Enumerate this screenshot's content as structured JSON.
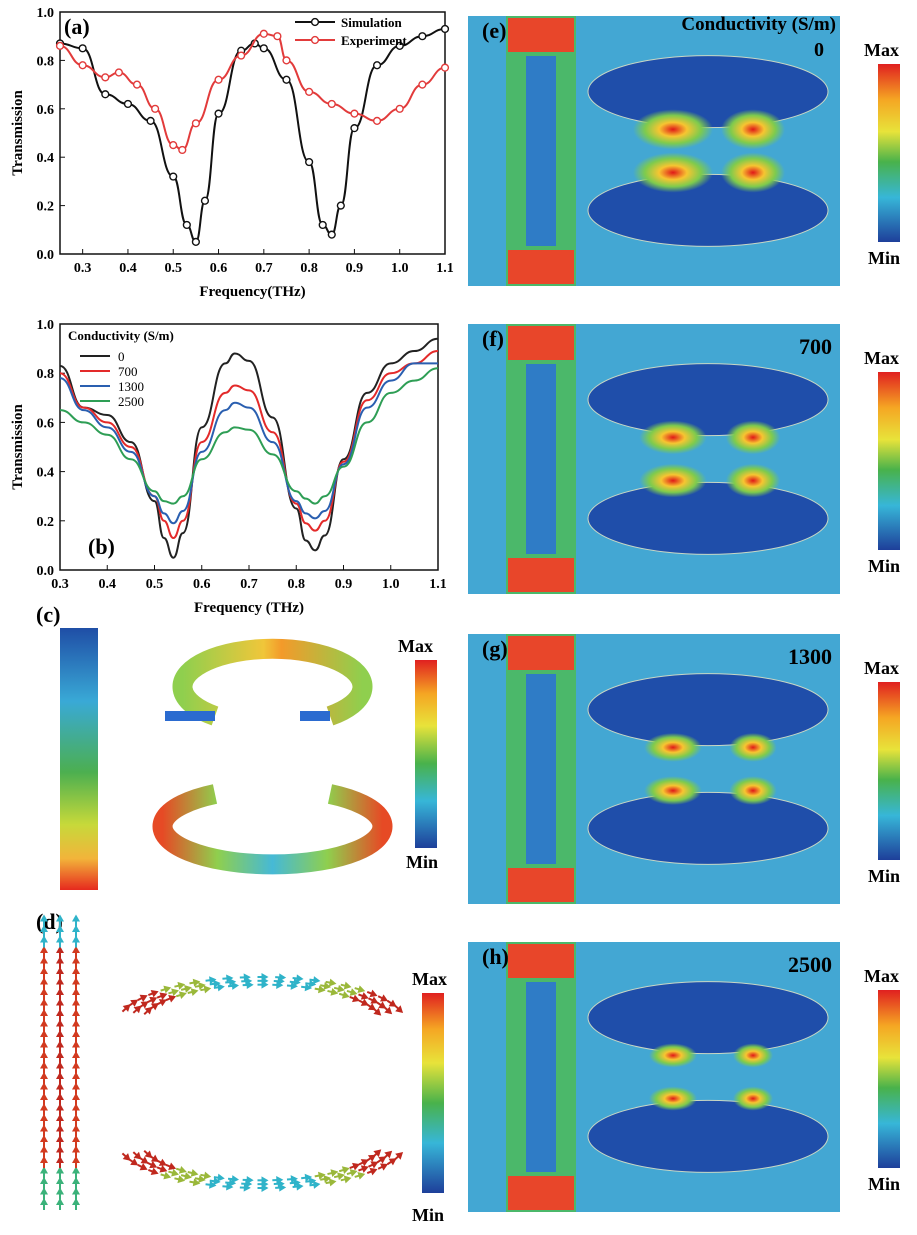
{
  "figure": {
    "panel_labels": {
      "a": "(a)",
      "b": "(b)",
      "c": "(c)",
      "d": "(d)",
      "e": "(e)",
      "f": "(f)",
      "g": "(g)",
      "h": "(h)"
    },
    "max_label": "Max",
    "min_label": "Min",
    "field_panels": [
      {
        "label": "(e)",
        "header": "Conductivity (S/m)",
        "value": "0"
      },
      {
        "label": "(f)",
        "value": "700"
      },
      {
        "label": "(g)",
        "value": "1300"
      },
      {
        "label": "(h)",
        "value": "2500"
      }
    ]
  },
  "chart_data": [
    {
      "type": "line",
      "panel": "(a)",
      "xlabel": "Frequency(THz)",
      "ylabel": "Transmission",
      "xlim": [
        0.25,
        1.1
      ],
      "ylim": [
        0,
        1.0
      ],
      "xticks": [
        0.3,
        0.4,
        0.5,
        0.6,
        0.7,
        0.8,
        0.9,
        1.0,
        1.1
      ],
      "yticks": [
        0.0,
        0.2,
        0.4,
        0.6,
        0.8,
        1.0
      ],
      "legend": "top-right",
      "series": [
        {
          "name": "Simulation",
          "color": "#111111",
          "marker": "circle",
          "x": [
            0.25,
            0.3,
            0.35,
            0.4,
            0.45,
            0.5,
            0.53,
            0.55,
            0.57,
            0.6,
            0.65,
            0.68,
            0.7,
            0.75,
            0.8,
            0.83,
            0.85,
            0.87,
            0.9,
            0.95,
            1.0,
            1.05,
            1.1
          ],
          "y": [
            0.87,
            0.85,
            0.66,
            0.62,
            0.55,
            0.32,
            0.12,
            0.05,
            0.22,
            0.58,
            0.84,
            0.87,
            0.85,
            0.72,
            0.38,
            0.12,
            0.08,
            0.2,
            0.52,
            0.78,
            0.86,
            0.9,
            0.93
          ]
        },
        {
          "name": "Experiment",
          "color": "#e23b3b",
          "marker": "circle",
          "x": [
            0.25,
            0.3,
            0.35,
            0.38,
            0.42,
            0.46,
            0.5,
            0.52,
            0.55,
            0.6,
            0.65,
            0.7,
            0.73,
            0.75,
            0.8,
            0.85,
            0.9,
            0.95,
            1.0,
            1.05,
            1.1
          ],
          "y": [
            0.86,
            0.78,
            0.73,
            0.75,
            0.7,
            0.6,
            0.45,
            0.43,
            0.54,
            0.72,
            0.82,
            0.91,
            0.9,
            0.8,
            0.67,
            0.62,
            0.58,
            0.55,
            0.6,
            0.7,
            0.77
          ]
        }
      ]
    },
    {
      "type": "line",
      "panel": "(b)",
      "xlabel": "Frequency (THz)",
      "ylabel": "Transmission",
      "xlim": [
        0.3,
        1.1
      ],
      "ylim": [
        0,
        1.0
      ],
      "xticks": [
        0.3,
        0.4,
        0.5,
        0.6,
        0.7,
        0.8,
        0.9,
        1.0,
        1.1
      ],
      "yticks": [
        0.0,
        0.2,
        0.4,
        0.6,
        0.8,
        1.0
      ],
      "legend_title": "Conductivity (S/m)",
      "legend": "top-left",
      "series": [
        {
          "name": "0",
          "color": "#222222",
          "x": [
            0.3,
            0.35,
            0.4,
            0.45,
            0.5,
            0.52,
            0.54,
            0.56,
            0.6,
            0.65,
            0.67,
            0.7,
            0.75,
            0.8,
            0.82,
            0.84,
            0.86,
            0.9,
            0.95,
            1.0,
            1.05,
            1.1
          ],
          "y": [
            0.83,
            0.66,
            0.63,
            0.52,
            0.28,
            0.13,
            0.05,
            0.15,
            0.58,
            0.84,
            0.88,
            0.85,
            0.62,
            0.25,
            0.12,
            0.08,
            0.14,
            0.45,
            0.72,
            0.84,
            0.89,
            0.94
          ]
        },
        {
          "name": "700",
          "color": "#e32a2a",
          "x": [
            0.3,
            0.35,
            0.4,
            0.45,
            0.5,
            0.52,
            0.54,
            0.56,
            0.6,
            0.65,
            0.67,
            0.7,
            0.75,
            0.8,
            0.82,
            0.84,
            0.86,
            0.9,
            0.95,
            1.0,
            1.05,
            1.1
          ],
          "y": [
            0.8,
            0.66,
            0.6,
            0.5,
            0.3,
            0.2,
            0.13,
            0.2,
            0.52,
            0.72,
            0.75,
            0.73,
            0.56,
            0.27,
            0.19,
            0.16,
            0.2,
            0.44,
            0.69,
            0.8,
            0.84,
            0.89
          ]
        },
        {
          "name": "1300",
          "color": "#2a5fb0",
          "x": [
            0.3,
            0.35,
            0.4,
            0.45,
            0.5,
            0.52,
            0.54,
            0.56,
            0.6,
            0.65,
            0.67,
            0.7,
            0.75,
            0.8,
            0.82,
            0.84,
            0.86,
            0.9,
            0.95,
            1.0,
            1.05,
            1.1
          ],
          "y": [
            0.78,
            0.65,
            0.58,
            0.48,
            0.3,
            0.23,
            0.19,
            0.24,
            0.48,
            0.65,
            0.68,
            0.66,
            0.52,
            0.28,
            0.23,
            0.21,
            0.24,
            0.43,
            0.66,
            0.77,
            0.84,
            0.84
          ]
        },
        {
          "name": "2500",
          "color": "#2e9e55",
          "x": [
            0.3,
            0.35,
            0.4,
            0.45,
            0.5,
            0.52,
            0.54,
            0.56,
            0.6,
            0.65,
            0.67,
            0.7,
            0.75,
            0.8,
            0.82,
            0.84,
            0.86,
            0.9,
            0.95,
            1.0,
            1.05,
            1.1
          ],
          "y": [
            0.65,
            0.6,
            0.55,
            0.45,
            0.32,
            0.28,
            0.27,
            0.3,
            0.45,
            0.56,
            0.58,
            0.57,
            0.47,
            0.32,
            0.29,
            0.27,
            0.3,
            0.42,
            0.6,
            0.72,
            0.77,
            0.82
          ]
        }
      ]
    }
  ]
}
